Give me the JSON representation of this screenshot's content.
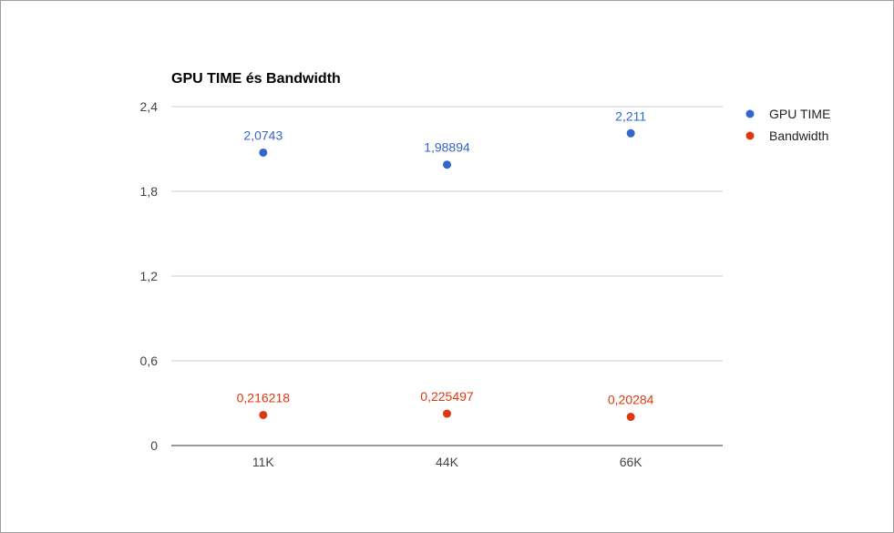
{
  "chart_data": {
    "type": "scatter",
    "title": "GPU TIME és Bandwidth",
    "xlabel": "",
    "ylabel": "",
    "categories": [
      "11K",
      "44K",
      "66K"
    ],
    "ylim": [
      0,
      2.4
    ],
    "yticks": [
      "0",
      "0,6",
      "1,2",
      "1,8",
      "2,4"
    ],
    "ytick_values": [
      0,
      0.6,
      1.2,
      1.8,
      2.4
    ],
    "grid": true,
    "legend_position": "right",
    "series": [
      {
        "name": "GPU TIME",
        "color": "#3366cc",
        "values": [
          2.0743,
          1.98894,
          2.211
        ],
        "labels": [
          "2,0743",
          "1,98894",
          "2,211"
        ]
      },
      {
        "name": "Bandwidth",
        "color": "#dc3912",
        "values": [
          0.216218,
          0.225497,
          0.20284
        ],
        "labels": [
          "0,216218",
          "0,225497",
          "0,20284"
        ]
      }
    ]
  }
}
